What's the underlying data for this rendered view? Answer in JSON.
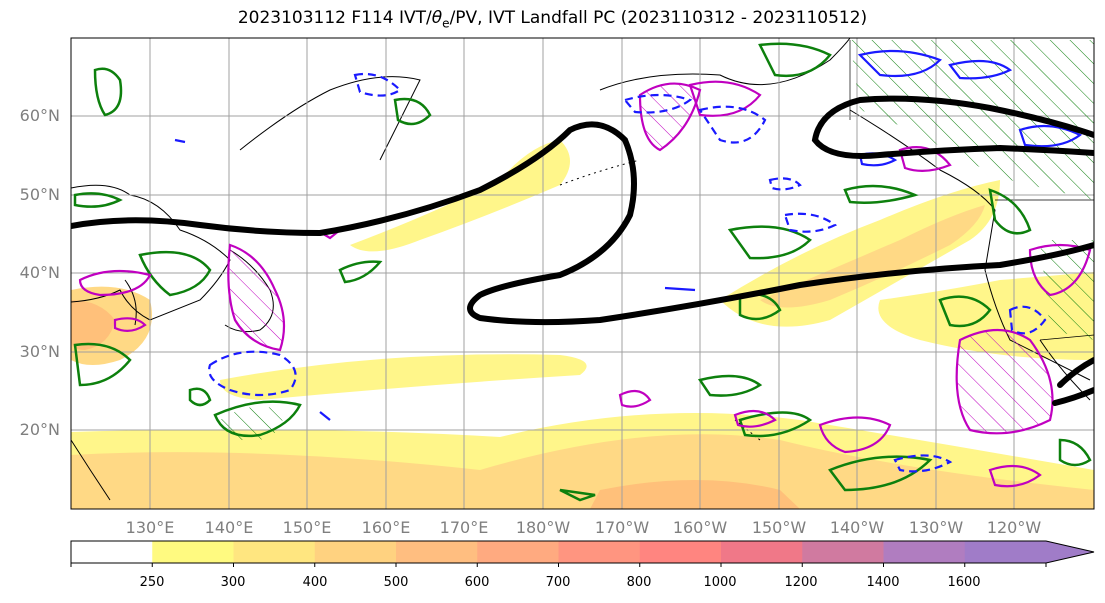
{
  "title": {
    "prefix": "2023103112 F114 IVT/",
    "theta": "θ",
    "theta_sub": "e",
    "suffix": "/PV, IVT Landfall PC (2023110312 - 2023110512)"
  },
  "lat_labels": [
    "60°N",
    "50°N",
    "40°N",
    "30°N",
    "20°N"
  ],
  "lon_labels": [
    "130°E",
    "140°E",
    "150°E",
    "160°E",
    "170°E",
    "180°W",
    "170°W",
    "160°W",
    "150°W",
    "140°W",
    "130°W",
    "120°W"
  ],
  "colorbar": {
    "ticks": [
      "250",
      "300",
      "400",
      "500",
      "600",
      "700",
      "800",
      "1000",
      "1200",
      "1400",
      "1600"
    ],
    "colors": [
      "#ffffff",
      "#fffa80",
      "#ffe680",
      "#ffd280",
      "#ffbe80",
      "#ffaa80",
      "#ff9580",
      "#ff8580",
      "#f07888",
      "#d07aa0",
      "#b07dc0",
      "#a07cc8"
    ],
    "extend": "max"
  },
  "legend_colors": {
    "ivt_fill_low": "#fff68a",
    "ivt_fill_mid": "#ffd985",
    "ivt_fill_high": "#ffc07a",
    "landfall_contour": "#000000",
    "pv_contour": "#0d800d",
    "theta_e_positive": "#c000c0",
    "theta_e_negative": "#1a1aff",
    "gridlines": "#a0a0a0"
  }
}
